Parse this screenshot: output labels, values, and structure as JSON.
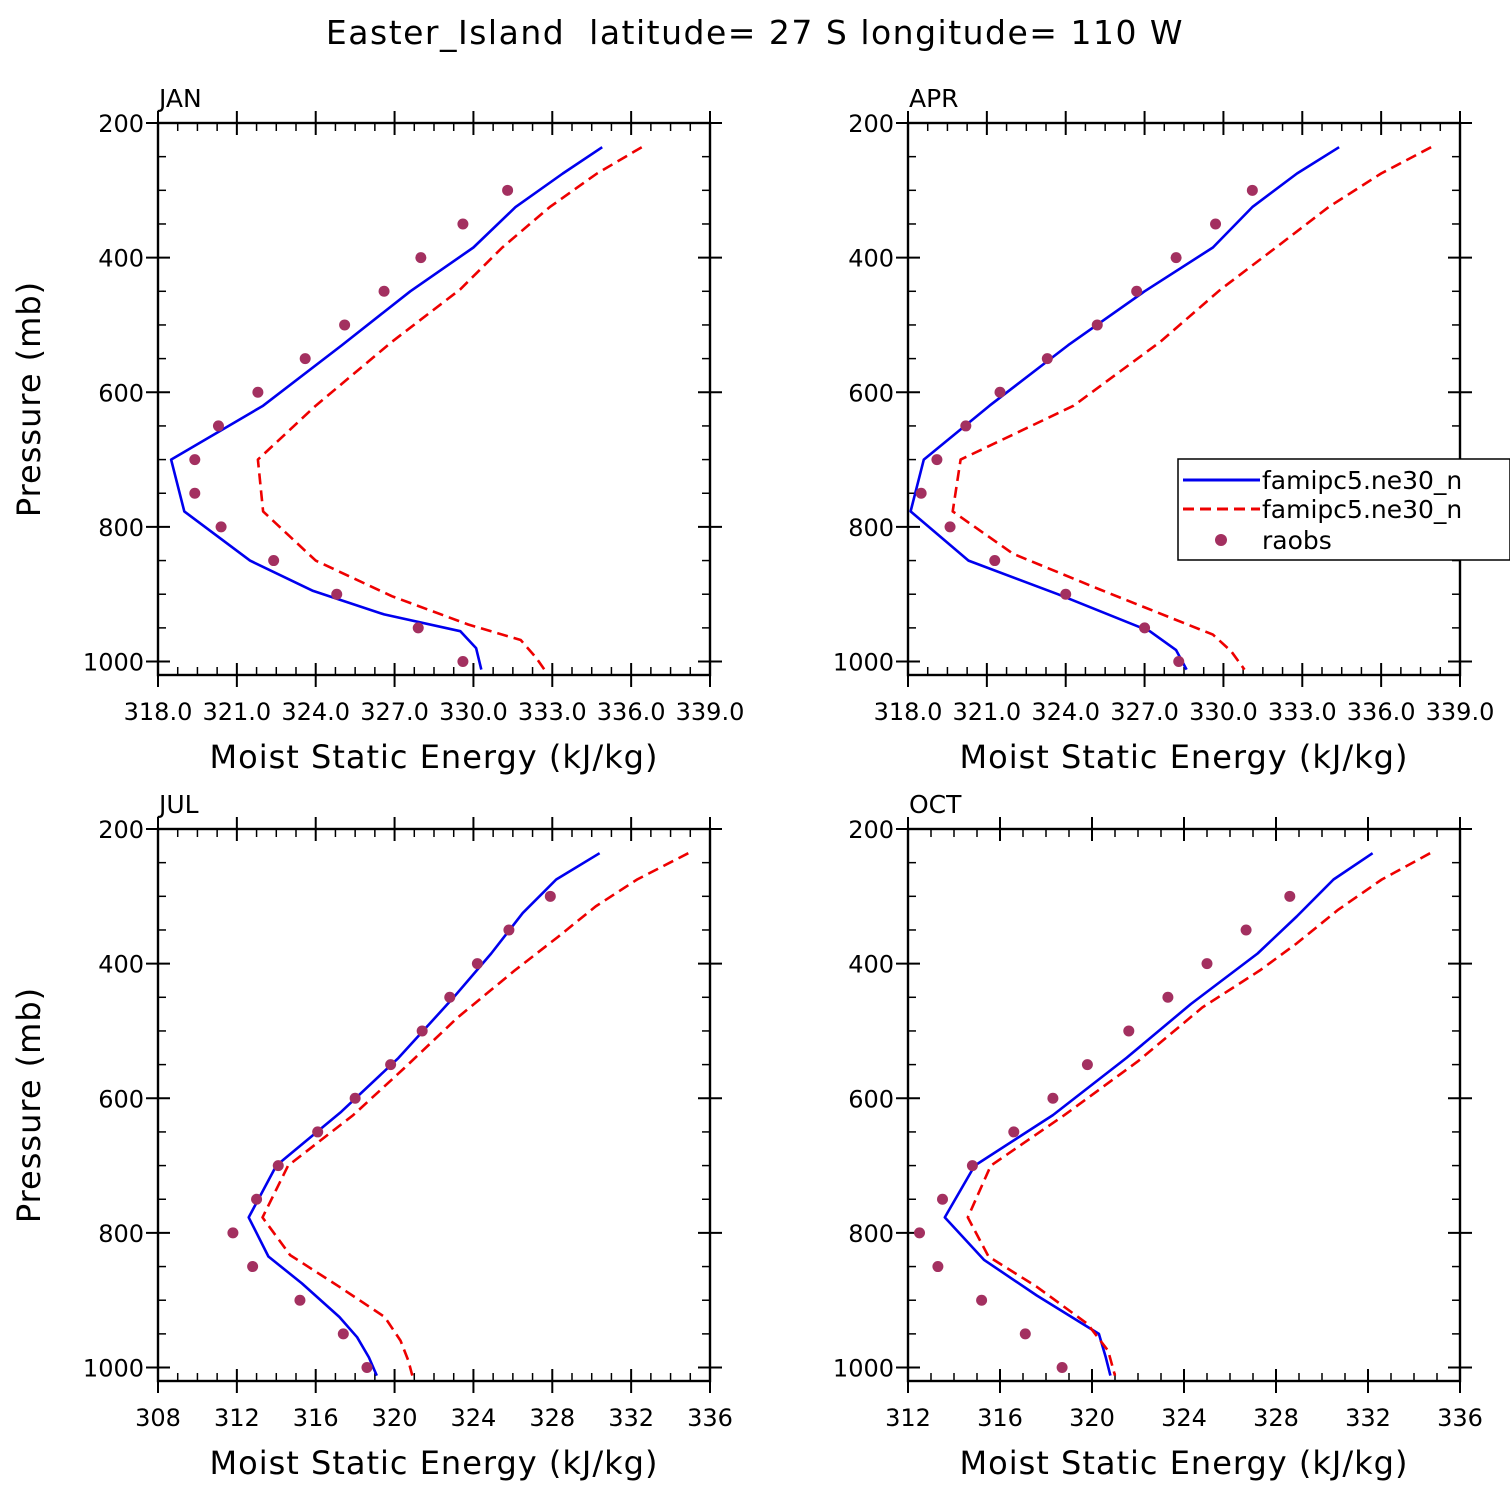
{
  "title": "Easter_Island  latitude= 27 S longitude= 110 W",
  "colors": {
    "series1": "#0000ee",
    "series2": "#ee0000",
    "obs": "#a33060",
    "axis": "#000000"
  },
  "legend": {
    "entries": [
      "famipc5.ne30_n",
      "famipc5.ne30_n",
      "raobs"
    ]
  },
  "chart_data": [
    {
      "type": "line",
      "panel": "JAN",
      "title": "JAN",
      "xlabel": "Moist Static Energy (kJ/kg)",
      "ylabel": "Pressure (mb)",
      "xlim": [
        318,
        339
      ],
      "ylim": [
        200,
        1020
      ],
      "y_inverted": true,
      "xticks": [
        318,
        321,
        324,
        327,
        330,
        333,
        336,
        339
      ],
      "xtick_labels": [
        "318.0",
        "321.0",
        "324.0",
        "327.0",
        "330.0",
        "333.0",
        "336.0",
        "339.0"
      ],
      "yticks": [
        200,
        400,
        600,
        800,
        1000
      ],
      "ytick_labels": [
        "200",
        "400",
        "600",
        "800",
        "1000"
      ],
      "series": [
        {
          "name": "famipc5.ne30_n",
          "style": "solid",
          "points": [
            [
              334.9,
              236
            ],
            [
              333.4,
              275
            ],
            [
              331.6,
              325
            ],
            [
              330.0,
              385
            ],
            [
              327.6,
              450
            ],
            [
              325.0,
              530
            ],
            [
              322.0,
              620
            ],
            [
              318.5,
              700
            ],
            [
              319.0,
              777
            ],
            [
              321.5,
              850
            ],
            [
              323.9,
              895
            ],
            [
              326.6,
              930
            ],
            [
              329.5,
              955
            ],
            [
              330.1,
              980
            ],
            [
              330.3,
              1012
            ]
          ]
        },
        {
          "name": "famipc5.ne30_n",
          "style": "dashed",
          "points": [
            [
              336.4,
              236
            ],
            [
              334.7,
              275
            ],
            [
              332.9,
              325
            ],
            [
              331.1,
              385
            ],
            [
              329.5,
              447
            ],
            [
              326.9,
              525
            ],
            [
              324.0,
              620
            ],
            [
              321.8,
              700
            ],
            [
              322.0,
              777
            ],
            [
              324.0,
              850
            ],
            [
              326.9,
              903
            ],
            [
              329.8,
              945
            ],
            [
              331.8,
              968
            ],
            [
              332.4,
              995
            ],
            [
              332.7,
              1012
            ]
          ]
        },
        {
          "name": "raobs",
          "style": "points",
          "points": [
            [
              331.3,
              300
            ],
            [
              329.6,
              350
            ],
            [
              328.0,
              400
            ],
            [
              326.6,
              450
            ],
            [
              325.1,
              500
            ],
            [
              323.6,
              550
            ],
            [
              321.8,
              600
            ],
            [
              320.3,
              650
            ],
            [
              319.4,
              700
            ],
            [
              319.4,
              750
            ],
            [
              320.4,
              800
            ],
            [
              322.4,
              850
            ],
            [
              324.8,
              900
            ],
            [
              327.9,
              950
            ],
            [
              329.6,
              1000
            ]
          ]
        }
      ]
    },
    {
      "type": "line",
      "panel": "APR",
      "title": "APR",
      "xlabel": "Moist Static Energy (kJ/kg)",
      "ylabel": "",
      "xlim": [
        318,
        339
      ],
      "ylim": [
        200,
        1020
      ],
      "y_inverted": true,
      "xticks": [
        318,
        321,
        324,
        327,
        330,
        333,
        336,
        339
      ],
      "xtick_labels": [
        "318.0",
        "321.0",
        "324.0",
        "327.0",
        "330.0",
        "333.0",
        "336.0",
        "339.0"
      ],
      "yticks": [
        200,
        400,
        600,
        800,
        1000
      ],
      "ytick_labels": [
        "200",
        "400",
        "600",
        "800",
        "1000"
      ],
      "series": [
        {
          "name": "famipc5.ne30_n",
          "style": "solid",
          "points": [
            [
              334.4,
              236
            ],
            [
              332.8,
              275
            ],
            [
              331.1,
              325
            ],
            [
              329.6,
              385
            ],
            [
              327.0,
              450
            ],
            [
              324.1,
              530
            ],
            [
              321.1,
              620
            ],
            [
              318.6,
              700
            ],
            [
              318.1,
              777
            ],
            [
              320.3,
              850
            ],
            [
              323.7,
              900
            ],
            [
              327.2,
              955
            ],
            [
              328.2,
              983
            ],
            [
              328.6,
              1012
            ]
          ]
        },
        {
          "name": "famipc5.ne30_n",
          "style": "dashed",
          "points": [
            [
              337.9,
              236
            ],
            [
              336.0,
              275
            ],
            [
              334.0,
              325
            ],
            [
              332.0,
              385
            ],
            [
              329.9,
              447
            ],
            [
              327.6,
              525
            ],
            [
              324.3,
              620
            ],
            [
              320.0,
              700
            ],
            [
              319.7,
              777
            ],
            [
              322.0,
              840
            ],
            [
              325.3,
              893
            ],
            [
              329.6,
              960
            ],
            [
              330.3,
              985
            ],
            [
              330.8,
              1012
            ]
          ]
        },
        {
          "name": "raobs",
          "style": "points",
          "points": [
            [
              331.1,
              300
            ],
            [
              329.7,
              350
            ],
            [
              328.2,
              400
            ],
            [
              326.7,
              450
            ],
            [
              325.2,
              500
            ],
            [
              323.3,
              550
            ],
            [
              321.5,
              600
            ],
            [
              320.2,
              650
            ],
            [
              319.1,
              700
            ],
            [
              318.5,
              750
            ],
            [
              319.6,
              800
            ],
            [
              321.3,
              850
            ],
            [
              324.0,
              900
            ],
            [
              327.0,
              950
            ],
            [
              328.3,
              1000
            ]
          ]
        }
      ]
    },
    {
      "type": "line",
      "panel": "JUL",
      "title": "JUL",
      "xlabel": "Moist Static Energy (kJ/kg)",
      "ylabel": "Pressure (mb)",
      "xlim": [
        308,
        336
      ],
      "ylim": [
        200,
        1020
      ],
      "y_inverted": true,
      "xticks": [
        308,
        312,
        316,
        320,
        324,
        328,
        332,
        336
      ],
      "xtick_labels": [
        "308",
        "312",
        "316",
        "320",
        "324",
        "328",
        "332",
        "336"
      ],
      "yticks": [
        200,
        400,
        600,
        800,
        1000
      ],
      "ytick_labels": [
        "200",
        "400",
        "600",
        "800",
        "1000"
      ],
      "series": [
        {
          "name": "famipc5.ne30_n",
          "style": "solid",
          "points": [
            [
              330.4,
              236
            ],
            [
              328.2,
              275
            ],
            [
              326.5,
              325
            ],
            [
              324.9,
              385
            ],
            [
              323.0,
              450
            ],
            [
              320.2,
              540
            ],
            [
              317.3,
              620
            ],
            [
              314.0,
              700
            ],
            [
              312.6,
              777
            ],
            [
              313.6,
              835
            ],
            [
              315.3,
              875
            ],
            [
              317.2,
              925
            ],
            [
              318.1,
              955
            ],
            [
              318.7,
              985
            ],
            [
              319.1,
              1012
            ]
          ]
        },
        {
          "name": "famipc5.ne30_n",
          "style": "dashed",
          "points": [
            [
              334.9,
              236
            ],
            [
              332.3,
              275
            ],
            [
              330.2,
              315
            ],
            [
              328.3,
              360
            ],
            [
              326.1,
              410
            ],
            [
              323.2,
              480
            ],
            [
              320.5,
              555
            ],
            [
              317.9,
              625
            ],
            [
              314.6,
              700
            ],
            [
              313.3,
              777
            ],
            [
              314.7,
              833
            ],
            [
              317.2,
              880
            ],
            [
              319.5,
              925
            ],
            [
              320.3,
              960
            ],
            [
              320.7,
              990
            ],
            [
              320.9,
              1012
            ]
          ]
        },
        {
          "name": "raobs",
          "style": "points",
          "points": [
            [
              327.9,
              300
            ],
            [
              325.8,
              350
            ],
            [
              324.2,
              400
            ],
            [
              322.8,
              450
            ],
            [
              321.4,
              500
            ],
            [
              319.8,
              550
            ],
            [
              318.0,
              600
            ],
            [
              316.1,
              650
            ],
            [
              314.1,
              700
            ],
            [
              313.0,
              750
            ],
            [
              311.8,
              800
            ],
            [
              312.8,
              850
            ],
            [
              315.2,
              900
            ],
            [
              317.4,
              950
            ],
            [
              318.6,
              1000
            ]
          ]
        }
      ]
    },
    {
      "type": "line",
      "panel": "OCT",
      "title": "OCT",
      "xlabel": "Moist Static Energy (kJ/kg)",
      "ylabel": "",
      "xlim": [
        312,
        336
      ],
      "ylim": [
        200,
        1020
      ],
      "y_inverted": true,
      "xticks": [
        312,
        316,
        320,
        324,
        328,
        332,
        336
      ],
      "xtick_labels": [
        "312",
        "316",
        "320",
        "324",
        "328",
        "332",
        "336"
      ],
      "yticks": [
        200,
        400,
        600,
        800,
        1000
      ],
      "ytick_labels": [
        "200",
        "400",
        "600",
        "800",
        "1000"
      ],
      "series": [
        {
          "name": "famipc5.ne30_n",
          "style": "solid",
          "points": [
            [
              332.2,
              236
            ],
            [
              330.5,
              275
            ],
            [
              328.9,
              330
            ],
            [
              327.2,
              385
            ],
            [
              324.3,
              460
            ],
            [
              321.5,
              540
            ],
            [
              318.3,
              625
            ],
            [
              314.9,
              700
            ],
            [
              313.6,
              777
            ],
            [
              315.3,
              840
            ],
            [
              317.6,
              893
            ],
            [
              320.3,
              950
            ],
            [
              320.6,
              985
            ],
            [
              320.8,
              1012
            ]
          ]
        },
        {
          "name": "famipc5.ne30_n",
          "style": "dashed",
          "points": [
            [
              334.7,
              236
            ],
            [
              332.6,
              275
            ],
            [
              330.7,
              320
            ],
            [
              328.9,
              370
            ],
            [
              327.3,
              410
            ],
            [
              324.8,
              465
            ],
            [
              322.0,
              545
            ],
            [
              318.8,
              625
            ],
            [
              315.6,
              700
            ],
            [
              314.6,
              777
            ],
            [
              315.5,
              835
            ],
            [
              317.6,
              880
            ],
            [
              319.8,
              935
            ],
            [
              320.7,
              975
            ],
            [
              321.0,
              1012
            ]
          ]
        },
        {
          "name": "raobs",
          "style": "points",
          "points": [
            [
              328.6,
              300
            ],
            [
              326.7,
              350
            ],
            [
              325.0,
              400
            ],
            [
              323.3,
              450
            ],
            [
              321.6,
              500
            ],
            [
              319.8,
              550
            ],
            [
              318.3,
              600
            ],
            [
              316.6,
              650
            ],
            [
              314.8,
              700
            ],
            [
              313.5,
              750
            ],
            [
              312.5,
              800
            ],
            [
              313.3,
              850
            ],
            [
              315.2,
              900
            ],
            [
              317.1,
              950
            ],
            [
              318.7,
              1000
            ]
          ]
        }
      ]
    }
  ]
}
